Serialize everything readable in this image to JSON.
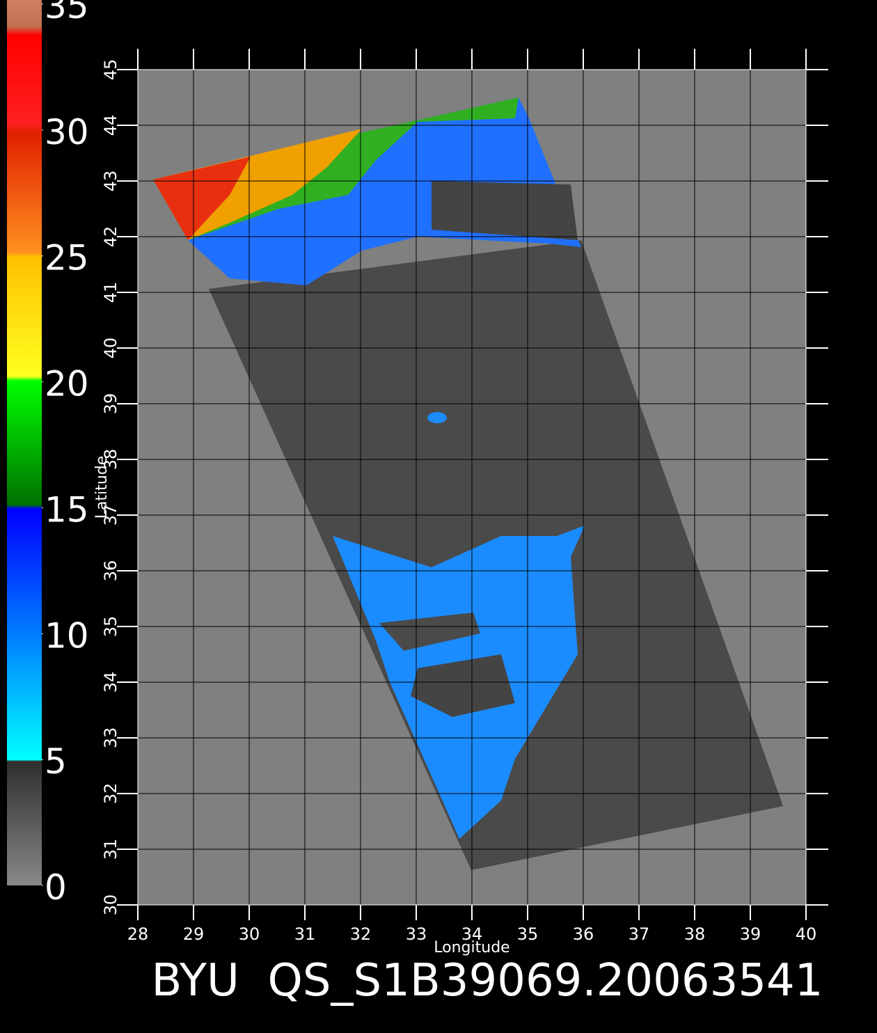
{
  "map": {
    "title": "BYU  QS_S1B39069.20063541",
    "xlabel": "Longitude",
    "ylabel": "Latitude",
    "xlim": [
      28,
      40
    ],
    "ylim": [
      30,
      45
    ],
    "xticks": [
      28,
      29,
      30,
      31,
      32,
      33,
      34,
      35,
      36,
      37,
      38,
      39,
      40
    ],
    "yticks": [
      30,
      31,
      32,
      33,
      34,
      35,
      36,
      37,
      38,
      39,
      40,
      41,
      42,
      43,
      44,
      45
    ],
    "grid": true,
    "colorbar": {
      "lim": [
        0,
        35
      ],
      "ticks": [
        0,
        5,
        10,
        15,
        20,
        25,
        30,
        35
      ]
    }
  }
}
